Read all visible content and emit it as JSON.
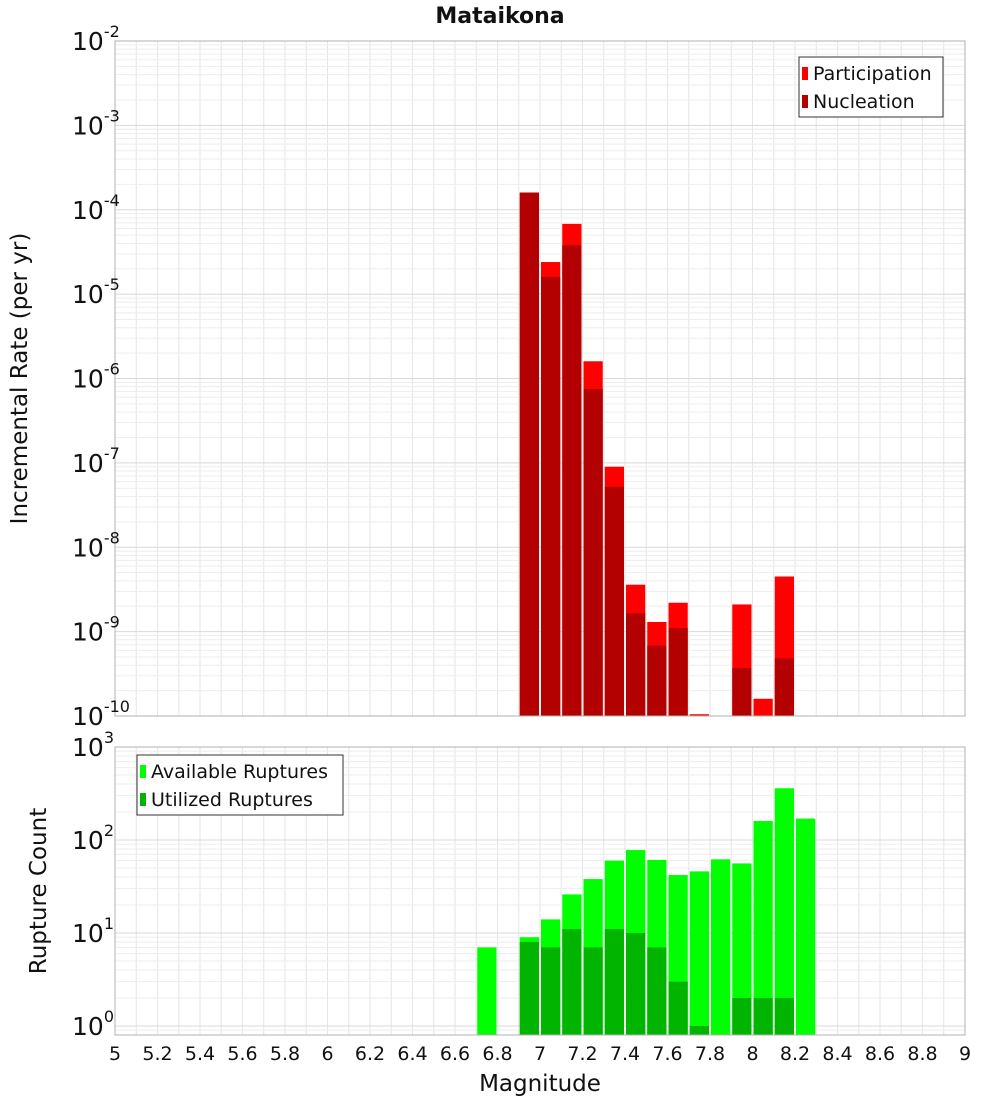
{
  "chart_data": [
    {
      "type": "bar",
      "title": "Mataikona",
      "xlabel": "",
      "ylabel": "Incremental Rate (per yr)",
      "yscale": "log",
      "ylim": [
        1e-10,
        0.01
      ],
      "xlim": [
        5,
        9
      ],
      "bar_width": 0.1,
      "grid": true,
      "legend_position": "top-right",
      "y_ticks": [
        {
          "base": "10",
          "exp": "-2"
        },
        {
          "base": "10",
          "exp": "-3"
        },
        {
          "base": "10",
          "exp": "-4"
        },
        {
          "base": "10",
          "exp": "-5"
        },
        {
          "base": "10",
          "exp": "-6"
        },
        {
          "base": "10",
          "exp": "-7"
        },
        {
          "base": "10",
          "exp": "-8"
        },
        {
          "base": "10",
          "exp": "-9"
        },
        {
          "base": "10",
          "exp": "-10"
        }
      ],
      "series": [
        {
          "name": "Participation",
          "color": "#ff0000",
          "x": [
            6.95,
            7.05,
            7.15,
            7.25,
            7.35,
            7.45,
            7.55,
            7.65,
            7.75,
            7.95,
            8.05,
            8.15
          ],
          "values": [
            0.00016,
            2.4e-05,
            6.8e-05,
            1.6e-06,
            9e-08,
            3.6e-09,
            1.3e-09,
            2.2e-09,
            1.05e-10,
            2.1e-09,
            1.6e-10,
            4.5e-09
          ]
        },
        {
          "name": "Nucleation",
          "color": "#b30000",
          "x": [
            6.95,
            7.05,
            7.15,
            7.25,
            7.35,
            7.45,
            7.55,
            7.65,
            7.95,
            8.15
          ],
          "values": [
            0.00016,
            1.6e-05,
            3.8e-05,
            7.5e-07,
            5.2e-08,
            1.65e-09,
            6.8e-10,
            1.1e-09,
            3.7e-10,
            4.8e-10
          ]
        }
      ]
    },
    {
      "type": "bar",
      "title": "",
      "xlabel": "Magnitude",
      "ylabel": "Rupture Count",
      "yscale": "log",
      "ylim": [
        0.8,
        1000
      ],
      "xlim": [
        5,
        9
      ],
      "bar_width": 0.1,
      "grid": true,
      "legend_position": "top-left",
      "x_ticks": [
        "5",
        "5.2",
        "5.4",
        "5.6",
        "5.8",
        "6",
        "6.2",
        "6.4",
        "6.6",
        "6.8",
        "7",
        "7.2",
        "7.4",
        "7.6",
        "7.8",
        "8",
        "8.2",
        "8.4",
        "8.6",
        "8.8",
        "9"
      ],
      "y_ticks": [
        {
          "base": "10",
          "exp": "3"
        },
        {
          "base": "10",
          "exp": "2"
        },
        {
          "base": "10",
          "exp": "1"
        },
        {
          "base": "10",
          "exp": "0"
        }
      ],
      "series": [
        {
          "name": "Available Ruptures",
          "color": "#00ff00",
          "x": [
            6.75,
            6.95,
            7.05,
            7.15,
            7.25,
            7.35,
            7.45,
            7.55,
            7.65,
            7.75,
            7.85,
            7.95,
            8.05,
            8.15,
            8.25
          ],
          "values": [
            7,
            9,
            14,
            26,
            38,
            60,
            78,
            61,
            42,
            46,
            62,
            56,
            160,
            360,
            170
          ]
        },
        {
          "name": "Utilized Ruptures",
          "color": "#00b400",
          "x": [
            6.95,
            7.05,
            7.15,
            7.25,
            7.35,
            7.45,
            7.55,
            7.65,
            7.75,
            7.95,
            8.05,
            8.15
          ],
          "values": [
            8,
            7,
            11,
            7,
            11,
            10,
            7,
            3,
            1,
            2,
            2,
            2
          ]
        }
      ]
    }
  ]
}
